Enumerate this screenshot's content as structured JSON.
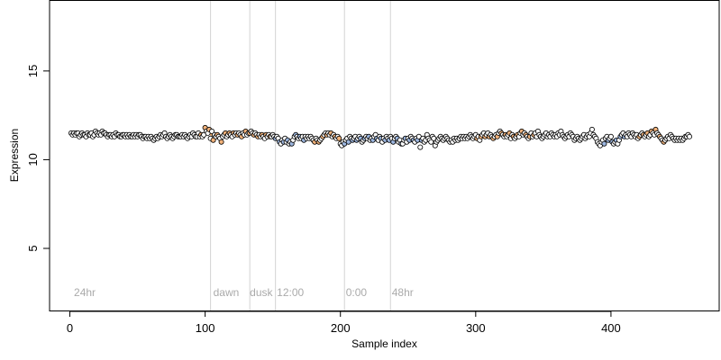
{
  "chart_data": {
    "type": "scatter",
    "title": "",
    "xlabel": "Sample index",
    "ylabel": "Expression",
    "xlim": [
      -15,
      480
    ],
    "ylim": [
      1.5,
      19
    ],
    "x_ticks": [
      0,
      100,
      200,
      300,
      400
    ],
    "y_ticks": [
      5,
      10,
      15
    ],
    "vlines": [
      104,
      133,
      152,
      203,
      237
    ],
    "annotations": [
      {
        "text": "24hr",
        "x": 3
      },
      {
        "text": "dawn",
        "x": 106
      },
      {
        "text": "dusk",
        "x": 133
      },
      {
        "text": "12:00",
        "x": 153
      },
      {
        "text": "0:00",
        "x": 204
      },
      {
        "text": "48hr",
        "x": 238
      }
    ],
    "annotation_y": 2,
    "colors": {
      "point_stroke": "#000000",
      "point_fill_default": "#ffffff",
      "point_fill_orange": "#f2b27a",
      "point_fill_blue": "#9db7e0",
      "vline": "#d3d3d3",
      "trend_orange": "#e89a4f",
      "trend_blue": "#6f97d6",
      "annotation_text": "#aaaaaa"
    },
    "series": [
      {
        "x_start": 1,
        "x_step": 1,
        "values": [
          11.5,
          11.4,
          11.5,
          11.4,
          11.5,
          11.5,
          11.3,
          11.4,
          11.5,
          11.4,
          11.4,
          11.3,
          11.5,
          11.4,
          11.4,
          11.5,
          11.3,
          11.4,
          11.6,
          11.5,
          11.4,
          11.5,
          11.4,
          11.6,
          11.5,
          11.5,
          11.4,
          11.3,
          11.4,
          11.4,
          11.3,
          11.4,
          11.3,
          11.5,
          11.4,
          11.4,
          11.3,
          11.3,
          11.4,
          11.4,
          11.3,
          11.4,
          11.3,
          11.4,
          11.3,
          11.3,
          11.4,
          11.3,
          11.4,
          11.3,
          11.4,
          11.4,
          11.3,
          11.2,
          11.3,
          11.3,
          11.2,
          11.3,
          11.2,
          11.3,
          11.2,
          11.1,
          11.2,
          11.3,
          11.2,
          11.3,
          11.4,
          11.3,
          11.4,
          11.5,
          11.3,
          11.2,
          11.3,
          11.4,
          11.3,
          11.2,
          11.3,
          11.4,
          11.4,
          11.3,
          11.3,
          11.3,
          11.4,
          11.3,
          11.4,
          11.3,
          11.2,
          11.3,
          11.4,
          11.3,
          11.5,
          11.4,
          11.3,
          11.3,
          11.5,
          11.3,
          11.4,
          11.3,
          11.4,
          11.8,
          11.6,
          11.5,
          11.7,
          11.2,
          11.6,
          11.1,
          11.4,
          11.3,
          11.4,
          11.3,
          11.2,
          11.0,
          11.3,
          11.4,
          11.5,
          11.3,
          11.4,
          11.5,
          11.4,
          11.3,
          11.5,
          11.4,
          11.5,
          11.4,
          11.5,
          11.4,
          11.3,
          11.5,
          11.4,
          11.6,
          11.4,
          11.5,
          11.5,
          11.6,
          11.5,
          11.4,
          11.5,
          11.4,
          11.3,
          11.4,
          11.3,
          11.4,
          11.3,
          11.2,
          11.4,
          11.3,
          11.4,
          11.3,
          11.3,
          11.4,
          11.3,
          11.2,
          11.3,
          11.2,
          11.0,
          10.9,
          11.1,
          11.0,
          11.2,
          11.0,
          11.1,
          10.9,
          11.0,
          10.9,
          11.1,
          11.3,
          11.4,
          11.3,
          11.2,
          11.3,
          11.2,
          11.3,
          11.1,
          11.3,
          11.2,
          11.3,
          11.2,
          11.3,
          11.2,
          11.1,
          11.0,
          11.2,
          11.1,
          11.0,
          11.1,
          11.2,
          11.3,
          11.4,
          11.5,
          11.4,
          11.5,
          11.4,
          11.5,
          11.3,
          11.4,
          11.3,
          11.2,
          11.3,
          11.2,
          10.9,
          10.8,
          11.0,
          10.9,
          11.1,
          11.2,
          11.0,
          11.3,
          11.2,
          11.1,
          11.2,
          11.3,
          11.1,
          11.2,
          11.3,
          11.2,
          11.0,
          11.1,
          11.2,
          11.3,
          11.2,
          11.3,
          11.1,
          11.2,
          11.1,
          11.3,
          11.4,
          11.2,
          11.1,
          11.3,
          11.2,
          11.0,
          11.2,
          11.1,
          11.3,
          11.2,
          11.1,
          11.3,
          11.2,
          11.0,
          11.2,
          11.3,
          11.2,
          11.0,
          11.1,
          10.9,
          10.9,
          11.1,
          11.2,
          11.0,
          11.2,
          11.1,
          11.3,
          11.2,
          11.1,
          11.0,
          11.2,
          11.1,
          11.3,
          10.7,
          11.1,
          11.2,
          11.0,
          11.1,
          11.4,
          11.2,
          11.1,
          11.0,
          11.3,
          11.2,
          10.8,
          11.0,
          11.1,
          11.2,
          11.3,
          11.2,
          11.1,
          11.2,
          11.3,
          11.2,
          11.1,
          11.0,
          11.1,
          11.0,
          11.2,
          11.1,
          11.2,
          11.1,
          11.2,
          11.3,
          11.2,
          11.3,
          11.2,
          11.3,
          11.2,
          11.3,
          11.4,
          11.3,
          11.2,
          11.3,
          11.4,
          11.2,
          11.3,
          11.1,
          11.3,
          11.4,
          11.5,
          11.3,
          11.4,
          11.5,
          11.3,
          11.4,
          11.3,
          11.2,
          11.3,
          11.4,
          11.3,
          11.5,
          11.6,
          11.5,
          11.4,
          11.3,
          11.4,
          11.3,
          11.4,
          11.5,
          11.2,
          11.4,
          11.3,
          11.2,
          11.3,
          11.4,
          11.3,
          11.5,
          11.6,
          11.4,
          11.5,
          11.4,
          11.3,
          11.2,
          11.3,
          11.5,
          11.3,
          11.4,
          11.5,
          11.3,
          11.6,
          11.4,
          11.3,
          11.2,
          11.3,
          11.4,
          11.5,
          11.3,
          11.4,
          11.3,
          11.5,
          11.4,
          11.3,
          11.4,
          11.3,
          11.5,
          11.4,
          11.6,
          11.4,
          11.3,
          11.2,
          11.3,
          11.4,
          11.3,
          11.5,
          11.4,
          11.3,
          11.1,
          11.2,
          11.3,
          11.2,
          11.1,
          11.2,
          11.3,
          11.4,
          11.2,
          11.3,
          11.4,
          11.3,
          11.5,
          11.7,
          11.4,
          11.3,
          11.2,
          11.0,
          10.9,
          10.8,
          11.0,
          11.1,
          10.9,
          11.2,
          11.3,
          11.1,
          11.2,
          11.3,
          11.0,
          10.9,
          11.0,
          11.1,
          10.9,
          11.1,
          11.3,
          11.4,
          11.5,
          11.3,
          11.4,
          11.3,
          11.5,
          11.4,
          11.3,
          11.5,
          11.4,
          11.3,
          11.4,
          11.2,
          11.3,
          11.4,
          11.5,
          11.4,
          11.3,
          11.4,
          11.5,
          11.3,
          11.4,
          11.6,
          11.5,
          11.4,
          11.7,
          11.5,
          11.4,
          11.3,
          11.2,
          11.1,
          11.0,
          11.1,
          11.2,
          11.3,
          11.2,
          11.4,
          11.3,
          11.2,
          11.1,
          11.2,
          11.1,
          11.2,
          11.1,
          11.2,
          11.1,
          11.2,
          11.3,
          11.3,
          11.4,
          11.3
        ],
        "orange_segments": [
          [
            97,
            150
          ],
          [
            180,
            200
          ],
          [
            300,
            345
          ],
          [
            420,
            440
          ]
        ],
        "blue_segments": [
          [
            151,
            175
          ],
          [
            201,
            262
          ],
          [
            395,
            410
          ]
        ]
      }
    ]
  }
}
